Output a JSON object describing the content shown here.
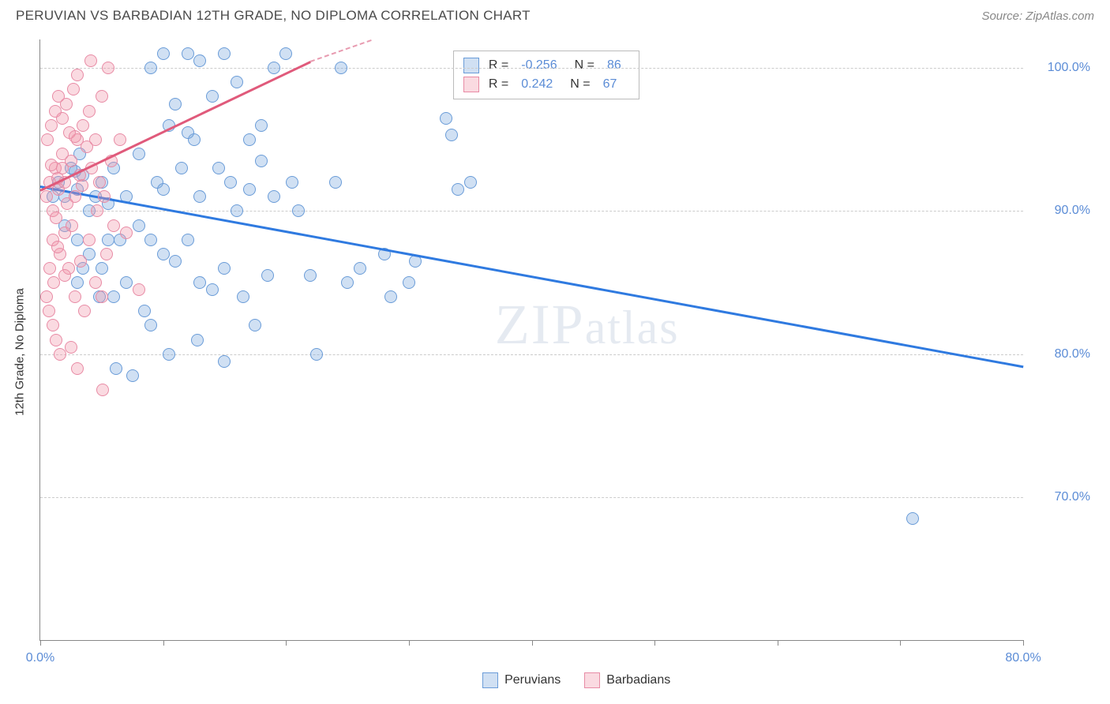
{
  "header": {
    "title": "PERUVIAN VS BARBADIAN 12TH GRADE, NO DIPLOMA CORRELATION CHART",
    "source": "Source: ZipAtlas.com"
  },
  "chart": {
    "type": "scatter",
    "y_label": "12th Grade, No Diploma",
    "xlim": [
      0,
      80
    ],
    "ylim": [
      60,
      102
    ],
    "x_ticks": [
      0,
      10,
      20,
      30,
      40,
      50,
      60,
      70,
      80
    ],
    "x_tick_labels": {
      "0": "0.0%",
      "80": "80.0%"
    },
    "y_gridlines": [
      70,
      80,
      90,
      100
    ],
    "y_tick_labels": {
      "70": "70.0%",
      "80": "80.0%",
      "90": "90.0%",
      "100": "100.0%"
    },
    "grid_color": "#cccccc",
    "axis_color": "#888888",
    "background_color": "#ffffff",
    "marker_size": 16,
    "series": [
      {
        "name": "Peruvians",
        "color_fill": "rgba(120,165,220,0.35)",
        "color_stroke": "#6a9cd8",
        "R": "-0.256",
        "N": "86",
        "trend": {
          "x1": 0,
          "y1": 91.8,
          "x2": 80,
          "y2": 79.2,
          "color": "#2f7ae0",
          "width": 2.5
        },
        "points": [
          [
            1.5,
            92
          ],
          [
            2,
            91
          ],
          [
            2.5,
            93
          ],
          [
            3,
            91.5
          ],
          [
            2,
            89
          ],
          [
            3.5,
            92.5
          ],
          [
            4,
            90
          ],
          [
            1,
            91
          ],
          [
            2.8,
            92.8
          ],
          [
            3.2,
            94
          ],
          [
            4.5,
            91
          ],
          [
            5,
            92
          ],
          [
            5.5,
            90.5
          ],
          [
            6,
            93
          ],
          [
            7,
            91
          ],
          [
            8,
            94
          ],
          [
            6.5,
            88
          ],
          [
            9,
            100
          ],
          [
            10,
            101
          ],
          [
            12,
            101
          ],
          [
            13,
            100.5
          ],
          [
            10.5,
            96
          ],
          [
            11,
            97.5
          ],
          [
            12.5,
            95
          ],
          [
            14,
            98
          ],
          [
            15,
            101
          ],
          [
            16,
            99
          ],
          [
            9.5,
            92
          ],
          [
            10,
            91.5
          ],
          [
            11.5,
            93
          ],
          [
            12,
            95.5
          ],
          [
            14.5,
            93
          ],
          [
            13,
            91
          ],
          [
            15.5,
            92
          ],
          [
            17,
            95
          ],
          [
            18,
            93.5
          ],
          [
            19,
            91
          ],
          [
            8,
            89
          ],
          [
            9,
            88
          ],
          [
            10,
            87
          ],
          [
            11,
            86.5
          ],
          [
            12,
            88
          ],
          [
            13,
            85
          ],
          [
            14,
            84.5
          ],
          [
            15,
            86
          ],
          [
            16,
            90
          ],
          [
            17,
            91.5
          ],
          [
            18,
            96
          ],
          [
            19,
            100
          ],
          [
            20,
            101
          ],
          [
            20.5,
            92
          ],
          [
            21,
            90
          ],
          [
            22,
            85.5
          ],
          [
            7,
            85
          ],
          [
            8.5,
            83
          ],
          [
            9,
            82
          ],
          [
            10.5,
            80
          ],
          [
            6,
            84
          ],
          [
            15,
            79.5
          ],
          [
            16.5,
            84
          ],
          [
            24,
            92
          ],
          [
            25,
            85
          ],
          [
            26,
            86
          ],
          [
            28,
            87
          ],
          [
            24.5,
            100
          ],
          [
            30,
            85
          ],
          [
            33,
            96.5
          ],
          [
            33.5,
            95.3
          ],
          [
            4,
            87
          ],
          [
            5,
            86
          ],
          [
            5.5,
            88
          ],
          [
            3,
            88
          ],
          [
            3.5,
            86
          ],
          [
            4.8,
            84
          ],
          [
            6.2,
            79
          ],
          [
            7.5,
            78.5
          ],
          [
            34,
            91.5
          ],
          [
            35,
            92
          ],
          [
            3,
            85
          ],
          [
            12.8,
            81
          ],
          [
            17.5,
            82
          ],
          [
            22.5,
            80
          ],
          [
            28.5,
            84
          ],
          [
            30.5,
            86.5
          ],
          [
            18.5,
            85.5
          ],
          [
            71,
            68.5
          ]
        ]
      },
      {
        "name": "Barbadians",
        "color_fill": "rgba(240,150,170,0.35)",
        "color_stroke": "#e88ba5",
        "R": "0.242",
        "N": "67",
        "trend": {
          "x1": 0,
          "y1": 91.5,
          "x2": 22,
          "y2": 100.5,
          "color": "#e05a7b",
          "width": 2.5,
          "dash_extend": {
            "x2": 27,
            "y2": 102
          }
        },
        "points": [
          [
            0.5,
            91
          ],
          [
            0.8,
            92
          ],
          [
            1,
            90
          ],
          [
            1.2,
            93
          ],
          [
            1.5,
            91.5
          ],
          [
            1.8,
            94
          ],
          [
            2,
            92
          ],
          [
            2.2,
            90.5
          ],
          [
            2.5,
            93.5
          ],
          [
            2.8,
            91
          ],
          [
            3,
            95
          ],
          [
            3.2,
            92.5
          ],
          [
            1,
            88
          ],
          [
            1.3,
            89.5
          ],
          [
            1.6,
            87
          ],
          [
            2,
            88.5
          ],
          [
            2.3,
            86
          ],
          [
            2.6,
            89
          ],
          [
            0.8,
            86
          ],
          [
            1.1,
            85
          ],
          [
            1.4,
            87.5
          ],
          [
            0.6,
            95
          ],
          [
            0.9,
            96
          ],
          [
            1.2,
            97
          ],
          [
            1.5,
            98
          ],
          [
            1.8,
            96.5
          ],
          [
            2.1,
            97.5
          ],
          [
            2.4,
            95.5
          ],
          [
            2.7,
            98.5
          ],
          [
            3,
            99.5
          ],
          [
            3.5,
            96
          ],
          [
            4,
            97
          ],
          [
            4.5,
            95
          ],
          [
            5,
            98
          ],
          [
            5.5,
            100
          ],
          [
            3.8,
            94.5
          ],
          [
            4.2,
            93
          ],
          [
            4.8,
            92
          ],
          [
            5.2,
            91
          ],
          [
            5.8,
            93.5
          ],
          [
            6.5,
            95
          ],
          [
            3.3,
            86.5
          ],
          [
            4,
            88
          ],
          [
            4.5,
            85
          ],
          [
            5,
            84
          ],
          [
            3.6,
            83
          ],
          [
            2.8,
            84
          ],
          [
            2,
            85.5
          ],
          [
            6,
            89
          ],
          [
            7,
            88.5
          ],
          [
            0.5,
            84
          ],
          [
            0.7,
            83
          ],
          [
            1,
            82
          ],
          [
            1.3,
            81
          ],
          [
            1.6,
            80
          ],
          [
            1.8,
            93
          ],
          [
            1.4,
            92.3
          ],
          [
            0.9,
            93.2
          ],
          [
            2.5,
            80.5
          ],
          [
            3,
            79
          ],
          [
            2.8,
            95.2
          ],
          [
            3.4,
            91.8
          ],
          [
            4.6,
            90
          ],
          [
            5.4,
            87
          ],
          [
            4.1,
            100.5
          ],
          [
            5.1,
            77.5
          ],
          [
            8,
            84.5
          ]
        ]
      }
    ],
    "watermark": {
      "text_bold": "ZIP",
      "text_light": "atlas",
      "color": "rgba(150,170,200,0.25)"
    },
    "legend_top": {
      "rows": [
        {
          "swatch": "blue",
          "r_label": "R =",
          "r_val": "-0.256",
          "n_label": "N =",
          "n_val": "86"
        },
        {
          "swatch": "pink",
          "r_label": "R =",
          "r_val": "0.242",
          "n_label": "N =",
          "n_val": "67"
        }
      ]
    },
    "legend_bottom": [
      {
        "swatch": "blue",
        "label": "Peruvians"
      },
      {
        "swatch": "pink",
        "label": "Barbadians"
      }
    ]
  }
}
